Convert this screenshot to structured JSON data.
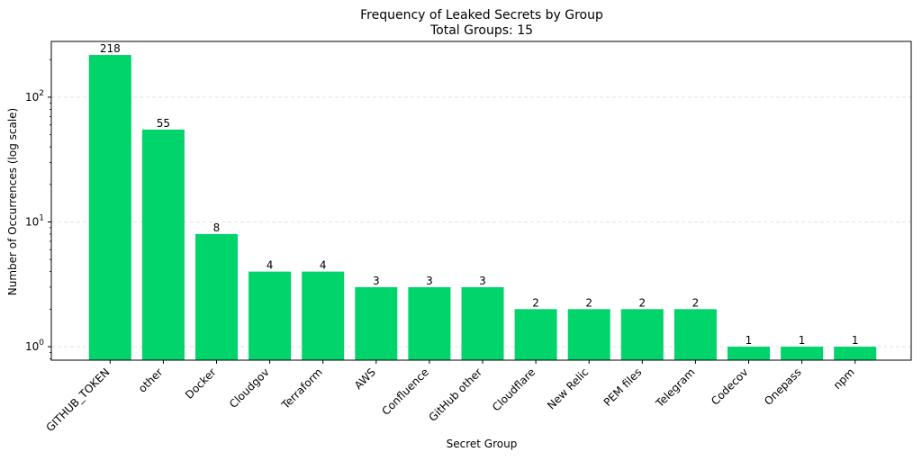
{
  "chart_data": {
    "type": "bar",
    "title": "Frequency of Leaked Secrets by Group",
    "subtitle": "Total Groups: 15",
    "xlabel": "Secret Group",
    "ylabel": "Number of Occurrences (log scale)",
    "yscale": "log",
    "ylim": [
      0.78,
      280
    ],
    "grid": "horizontal dashed at major ticks",
    "bar_color": "#00d46a",
    "categories": [
      "GITHUB_TOKEN",
      "other",
      "Docker",
      "Cloudgov",
      "Terraform",
      "AWS",
      "Confluence",
      "GitHub other",
      "Cloudflare",
      "New Relic",
      "PEM files",
      "Telegram",
      "Codecov",
      "Onepass",
      "npm"
    ],
    "values": [
      218,
      55,
      8,
      4,
      4,
      3,
      3,
      3,
      2,
      2,
      2,
      2,
      1,
      1,
      1
    ],
    "yticks": [
      {
        "value": 1,
        "base": "10",
        "exp": "0"
      },
      {
        "value": 10,
        "base": "10",
        "exp": "1"
      },
      {
        "value": 100,
        "base": "10",
        "exp": "2"
      }
    ]
  }
}
